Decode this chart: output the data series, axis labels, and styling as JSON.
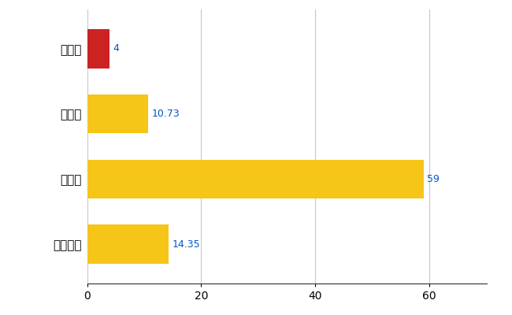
{
  "categories": [
    "葛巻町",
    "県平均",
    "県最大",
    "全国平均"
  ],
  "values": [
    4,
    10.73,
    59,
    14.35
  ],
  "bar_colors": [
    "#cc2222",
    "#f5c518",
    "#f5c518",
    "#f5c518"
  ],
  "value_labels": [
    "4",
    "10.73",
    "59",
    "14.35"
  ],
  "xlim": [
    0,
    70
  ],
  "xticks": [
    0,
    20,
    40,
    60
  ],
  "background_color": "#ffffff",
  "grid_color": "#c8c8c8",
  "label_color": "#0055cc",
  "bar_height": 0.6,
  "figsize": [
    6.5,
    4.0
  ],
  "dpi": 100
}
